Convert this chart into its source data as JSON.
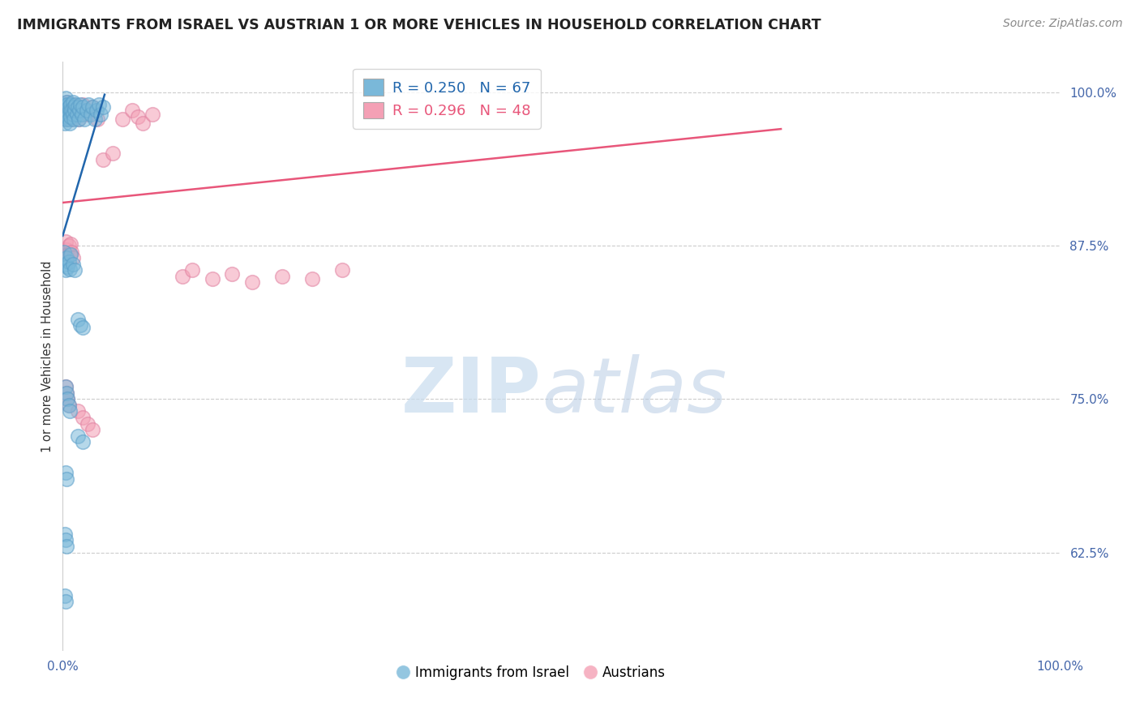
{
  "title": "IMMIGRANTS FROM ISRAEL VS AUSTRIAN 1 OR MORE VEHICLES IN HOUSEHOLD CORRELATION CHART",
  "source": "Source: ZipAtlas.com",
  "ylabel": "1 or more Vehicles in Household",
  "xlim": [
    0.0,
    1.0
  ],
  "ylim": [
    0.545,
    1.025
  ],
  "yticks": [
    0.625,
    0.75,
    0.875,
    1.0
  ],
  "ytick_labels": [
    "62.5%",
    "75.0%",
    "87.5%",
    "100.0%"
  ],
  "legend_labels": [
    "Immigrants from Israel",
    "Austrians"
  ],
  "R_blue": 0.25,
  "N_blue": 67,
  "R_pink": 0.296,
  "N_pink": 48,
  "blue_color": "#7ab8d9",
  "pink_color": "#f4a0b5",
  "blue_line_color": "#2166ac",
  "pink_line_color": "#e8567a",
  "blue_edge_color": "#5a9ec9",
  "pink_edge_color": "#e080a0",
  "blue_x": [
    0.001,
    0.002,
    0.002,
    0.003,
    0.003,
    0.003,
    0.004,
    0.004,
    0.005,
    0.005,
    0.006,
    0.006,
    0.007,
    0.007,
    0.008,
    0.008,
    0.009,
    0.01,
    0.01,
    0.011,
    0.011,
    0.012,
    0.013,
    0.014,
    0.015,
    0.016,
    0.017,
    0.018,
    0.019,
    0.02,
    0.022,
    0.024,
    0.026,
    0.028,
    0.03,
    0.032,
    0.034,
    0.036,
    0.038,
    0.04,
    0.001,
    0.002,
    0.003,
    0.004,
    0.005,
    0.006,
    0.007,
    0.008,
    0.01,
    0.012,
    0.015,
    0.018,
    0.02,
    0.003,
    0.004,
    0.005,
    0.006,
    0.007,
    0.003,
    0.004,
    0.002,
    0.003,
    0.004,
    0.002,
    0.003,
    0.015,
    0.02
  ],
  "blue_y": [
    0.99,
    0.985,
    0.975,
    0.995,
    0.988,
    0.978,
    0.992,
    0.982,
    0.99,
    0.98,
    0.988,
    0.978,
    0.985,
    0.975,
    0.99,
    0.98,
    0.985,
    0.992,
    0.982,
    0.988,
    0.978,
    0.985,
    0.99,
    0.982,
    0.988,
    0.978,
    0.985,
    0.99,
    0.982,
    0.988,
    0.978,
    0.985,
    0.99,
    0.982,
    0.988,
    0.978,
    0.985,
    0.99,
    0.982,
    0.988,
    0.87,
    0.86,
    0.855,
    0.865,
    0.858,
    0.862,
    0.856,
    0.868,
    0.86,
    0.855,
    0.815,
    0.81,
    0.808,
    0.76,
    0.755,
    0.75,
    0.745,
    0.74,
    0.69,
    0.685,
    0.64,
    0.635,
    0.63,
    0.59,
    0.585,
    0.72,
    0.715
  ],
  "pink_x": [
    0.002,
    0.003,
    0.004,
    0.005,
    0.006,
    0.007,
    0.008,
    0.009,
    0.01,
    0.012,
    0.014,
    0.016,
    0.018,
    0.02,
    0.025,
    0.03,
    0.035,
    0.003,
    0.004,
    0.005,
    0.006,
    0.007,
    0.008,
    0.009,
    0.01,
    0.06,
    0.07,
    0.075,
    0.08,
    0.09,
    0.04,
    0.05,
    0.12,
    0.13,
    0.15,
    0.17,
    0.19,
    0.22,
    0.25,
    0.28,
    0.003,
    0.004,
    0.005,
    0.006,
    0.015,
    0.02,
    0.025,
    0.03
  ],
  "pink_y": [
    0.99,
    0.985,
    0.978,
    0.992,
    0.982,
    0.988,
    0.978,
    0.985,
    0.99,
    0.982,
    0.988,
    0.978,
    0.985,
    0.99,
    0.982,
    0.988,
    0.978,
    0.878,
    0.872,
    0.868,
    0.875,
    0.869,
    0.876,
    0.87,
    0.865,
    0.978,
    0.985,
    0.98,
    0.975,
    0.982,
    0.945,
    0.95,
    0.85,
    0.855,
    0.848,
    0.852,
    0.845,
    0.85,
    0.848,
    0.855,
    0.76,
    0.755,
    0.75,
    0.745,
    0.74,
    0.735,
    0.73,
    0.725
  ]
}
